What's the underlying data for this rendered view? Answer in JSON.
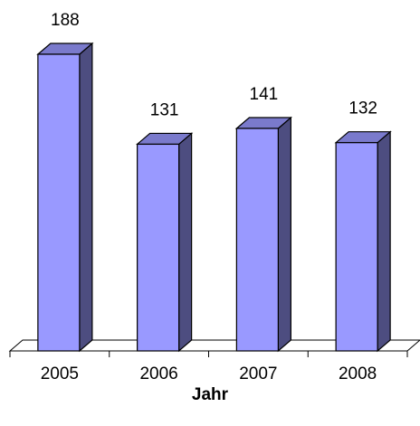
{
  "chart_data": {
    "type": "bar",
    "categories": [
      "2005",
      "2006",
      "2007",
      "2008"
    ],
    "values": [
      188,
      131,
      141,
      132
    ],
    "title": "",
    "xlabel": "Jahr",
    "ylabel": "",
    "ylim": [
      0,
      188
    ],
    "grid": false,
    "legend": "none",
    "three_d": true,
    "colors": {
      "bar_front": "#9999ff",
      "bar_side": "#4d4d80",
      "bar_top": "#7a7acc",
      "outline": "#000000"
    }
  }
}
